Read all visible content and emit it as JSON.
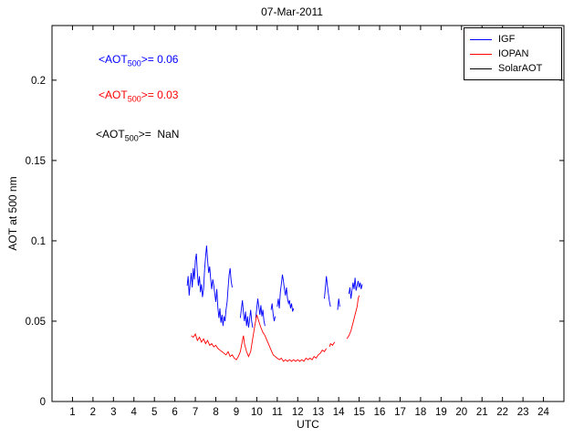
{
  "chart_data": {
    "type": "line",
    "title": "07-Mar-2011",
    "xlabel": "UTC",
    "ylabel": "AOT at 500 nm",
    "xlim": [
      0,
      25
    ],
    "ylim": [
      0,
      0.234
    ],
    "xticks": [
      1,
      2,
      3,
      4,
      5,
      6,
      7,
      8,
      9,
      10,
      11,
      12,
      13,
      14,
      15,
      16,
      17,
      18,
      19,
      20,
      21,
      22,
      23,
      24
    ],
    "yticks": [
      0,
      0.05,
      0.1,
      0.15,
      0.2
    ],
    "ytick_labels": [
      "0",
      "0.05",
      "0.1",
      "0.15",
      "0.2"
    ],
    "grid": false,
    "legend_position": "top-right",
    "series": [
      {
        "name": "IGF",
        "color": "#0000ff",
        "mean_aot_500": 0.06,
        "points": [
          [
            6.6,
            0.072
          ],
          [
            6.65,
            0.078
          ],
          [
            6.7,
            0.066
          ],
          [
            6.75,
            0.074
          ],
          [
            6.8,
            0.08
          ],
          [
            6.85,
            0.071
          ],
          [
            6.9,
            0.083
          ],
          [
            6.95,
            0.076
          ],
          [
            7.0,
            0.088
          ],
          [
            7.05,
            0.092
          ],
          [
            7.1,
            0.08
          ],
          [
            7.15,
            0.072
          ],
          [
            7.2,
            0.078
          ],
          [
            7.25,
            0.068
          ],
          [
            7.3,
            0.073
          ],
          [
            7.35,
            0.065
          ],
          [
            7.4,
            0.07
          ],
          [
            7.45,
            0.082
          ],
          [
            7.5,
            0.09
          ],
          [
            7.55,
            0.097
          ],
          [
            7.6,
            0.088
          ],
          [
            7.65,
            0.08
          ],
          [
            7.7,
            0.084
          ],
          [
            7.75,
            0.076
          ],
          [
            7.8,
            0.07
          ],
          [
            7.85,
            0.076
          ],
          [
            7.9,
            0.072
          ],
          [
            7.95,
            0.067
          ],
          [
            8.0,
            0.062
          ],
          [
            8.05,
            0.07
          ],
          [
            8.1,
            0.058
          ],
          [
            8.15,
            0.052
          ],
          [
            8.2,
            0.058
          ],
          [
            8.25,
            0.049
          ],
          [
            8.3,
            0.054
          ],
          [
            8.35,
            0.047
          ],
          [
            8.4,
            0.053
          ],
          [
            8.45,
            0.05
          ],
          [
            8.5,
            0.057
          ],
          [
            8.55,
            0.062
          ],
          [
            8.6,
            0.071
          ],
          [
            8.65,
            0.079
          ],
          [
            8.7,
            0.083
          ],
          [
            8.75,
            0.075
          ],
          [
            8.8,
            0.071
          ],
          null,
          [
            9.2,
            0.052
          ],
          [
            9.25,
            0.058
          ],
          [
            9.3,
            0.063
          ],
          [
            9.35,
            0.055
          ],
          [
            9.4,
            0.05
          ],
          [
            9.45,
            0.056
          ],
          [
            9.5,
            0.047
          ],
          [
            9.55,
            0.053
          ],
          [
            9.6,
            0.046
          ],
          [
            9.65,
            0.051
          ],
          [
            9.7,
            0.057
          ],
          [
            9.75,
            0.05
          ],
          [
            9.8,
            0.046
          ],
          null,
          [
            9.95,
            0.052
          ],
          [
            10.0,
            0.058
          ],
          [
            10.05,
            0.064
          ],
          [
            10.1,
            0.059
          ],
          [
            10.15,
            0.054
          ],
          [
            10.2,
            0.06
          ],
          [
            10.25,
            0.053
          ],
          [
            10.3,
            0.057
          ],
          [
            10.35,
            0.05
          ],
          [
            10.4,
            0.047
          ],
          null,
          [
            10.7,
            0.057
          ],
          [
            10.75,
            0.061
          ],
          [
            10.8,
            0.054
          ],
          [
            10.85,
            0.05
          ],
          [
            10.9,
            0.053
          ],
          null,
          [
            11.0,
            0.059
          ],
          [
            11.05,
            0.064
          ],
          [
            11.1,
            0.058
          ],
          [
            11.15,
            0.068
          ],
          [
            11.2,
            0.073
          ],
          [
            11.25,
            0.079
          ],
          [
            11.3,
            0.075
          ],
          [
            11.35,
            0.07
          ],
          [
            11.4,
            0.066
          ],
          [
            11.45,
            0.071
          ],
          [
            11.5,
            0.064
          ],
          [
            11.55,
            0.061
          ],
          [
            11.6,
            0.063
          ],
          [
            11.65,
            0.058
          ],
          [
            11.7,
            0.061
          ],
          [
            11.75,
            0.056
          ],
          [
            11.8,
            0.058
          ],
          null,
          [
            13.3,
            0.064
          ],
          [
            13.35,
            0.071
          ],
          [
            13.4,
            0.078
          ],
          [
            13.45,
            0.072
          ],
          [
            13.5,
            0.067
          ],
          [
            13.55,
            0.062
          ],
          [
            13.6,
            0.059
          ],
          null,
          [
            13.95,
            0.057
          ],
          [
            14.0,
            0.064
          ],
          [
            14.05,
            0.059
          ],
          null,
          [
            14.5,
            0.067
          ],
          [
            14.55,
            0.071
          ],
          [
            14.6,
            0.064
          ],
          [
            14.65,
            0.069
          ],
          [
            14.7,
            0.074
          ],
          [
            14.75,
            0.07
          ],
          [
            14.8,
            0.077
          ],
          [
            14.85,
            0.069
          ],
          [
            14.9,
            0.072
          ],
          [
            14.95,
            0.075
          ],
          [
            15.0,
            0.071
          ],
          [
            15.05,
            0.074
          ],
          [
            15.1,
            0.07
          ],
          [
            15.15,
            0.073
          ]
        ]
      },
      {
        "name": "IOPAN",
        "color": "#ff0000",
        "mean_aot_500": 0.03,
        "points": [
          [
            6.8,
            0.041
          ],
          [
            6.9,
            0.04
          ],
          [
            7.0,
            0.042
          ],
          [
            7.1,
            0.038
          ],
          [
            7.2,
            0.04
          ],
          [
            7.3,
            0.037
          ],
          [
            7.4,
            0.039
          ],
          [
            7.5,
            0.036
          ],
          [
            7.6,
            0.038
          ],
          [
            7.7,
            0.035
          ],
          [
            7.8,
            0.036
          ],
          [
            7.9,
            0.034
          ],
          [
            8.0,
            0.035
          ],
          [
            8.1,
            0.033
          ],
          [
            8.2,
            0.032
          ],
          [
            8.3,
            0.031
          ],
          [
            8.4,
            0.03
          ],
          [
            8.5,
            0.029
          ],
          [
            8.6,
            0.031
          ],
          [
            8.7,
            0.028
          ],
          [
            8.8,
            0.029
          ],
          [
            8.9,
            0.027
          ],
          [
            9.0,
            0.026
          ],
          [
            9.1,
            0.028
          ],
          [
            9.2,
            0.031
          ],
          [
            9.3,
            0.038
          ],
          [
            9.35,
            0.041
          ],
          [
            9.4,
            0.036
          ],
          [
            9.5,
            0.031
          ],
          [
            9.6,
            0.028
          ],
          [
            9.7,
            0.031
          ],
          [
            9.8,
            0.039
          ],
          [
            9.9,
            0.047
          ],
          [
            10.0,
            0.054
          ],
          [
            10.1,
            0.05
          ],
          [
            10.2,
            0.046
          ],
          [
            10.3,
            0.043
          ],
          [
            10.4,
            0.041
          ],
          [
            10.5,
            0.038
          ],
          [
            10.6,
            0.035
          ],
          [
            10.7,
            0.032
          ],
          [
            10.8,
            0.029
          ],
          [
            10.9,
            0.028
          ],
          [
            11.0,
            0.027
          ],
          [
            11.1,
            0.026
          ],
          [
            11.2,
            0.027
          ],
          [
            11.3,
            0.025
          ],
          [
            11.4,
            0.026
          ],
          [
            11.5,
            0.025
          ],
          [
            11.6,
            0.026
          ],
          [
            11.7,
            0.025
          ],
          [
            11.8,
            0.026
          ],
          [
            11.9,
            0.025
          ],
          [
            12.0,
            0.026
          ],
          [
            12.1,
            0.025
          ],
          [
            12.2,
            0.026
          ],
          [
            12.3,
            0.025
          ],
          [
            12.4,
            0.027
          ],
          [
            12.5,
            0.026
          ],
          [
            12.6,
            0.027
          ],
          [
            12.7,
            0.026
          ],
          [
            12.8,
            0.028
          ],
          [
            12.9,
            0.027
          ],
          [
            13.0,
            0.029
          ],
          [
            13.1,
            0.03
          ],
          [
            13.2,
            0.032
          ],
          [
            13.3,
            0.031
          ],
          [
            13.4,
            0.033
          ],
          null,
          [
            13.55,
            0.034
          ],
          [
            13.6,
            0.036
          ],
          [
            13.7,
            0.035
          ],
          [
            13.8,
            0.037
          ],
          null,
          [
            14.4,
            0.039
          ],
          [
            14.5,
            0.041
          ],
          [
            14.6,
            0.044
          ],
          [
            14.7,
            0.049
          ],
          [
            14.8,
            0.054
          ],
          [
            14.9,
            0.059
          ],
          [
            14.95,
            0.064
          ],
          [
            15.0,
            0.066
          ]
        ]
      },
      {
        "name": "SolarAOT",
        "color": "#000000",
        "mean_aot_500": null,
        "points": []
      }
    ],
    "annotations": [
      {
        "pre": "<AOT",
        "sub": "500",
        "post": ">= 0.06",
        "color": "#0000ff"
      },
      {
        "pre": "<AOT",
        "sub": "500",
        "post": ">= 0.03",
        "color": "#ff0000"
      },
      {
        "pre": "<AOT",
        "sub": "500",
        "post": ">=  NaN",
        "color": "#000000"
      }
    ]
  }
}
